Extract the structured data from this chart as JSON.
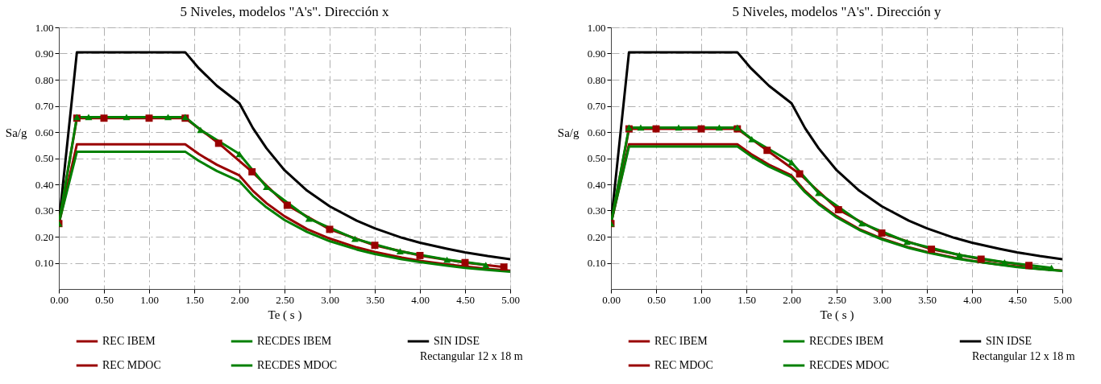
{
  "chart_data": [
    {
      "type": "line",
      "title": "5 Niveles, modelos \"A's\". Dirección x",
      "xlabel": "Te ( s )",
      "ylabel": "Sa/g",
      "xlim": [
        0,
        5
      ],
      "ylim": [
        0,
        1
      ],
      "xticks": [
        {
          "value": 0,
          "label": "0.00"
        },
        {
          "value": 0.5,
          "label": "0.50"
        },
        {
          "value": 1,
          "label": "1.00"
        },
        {
          "value": 1.5,
          "label": "1.50"
        },
        {
          "value": 2,
          "label": "2.00"
        },
        {
          "value": 2.5,
          "label": "2.50"
        },
        {
          "value": 3,
          "label": "3.00"
        },
        {
          "value": 3.5,
          "label": "3.50"
        },
        {
          "value": 4,
          "label": "4.00"
        },
        {
          "value": 4.5,
          "label": "4.50"
        },
        {
          "value": 5,
          "label": "5.00"
        }
      ],
      "yticks": [
        {
          "value": 0.1,
          "label": "0.10"
        },
        {
          "value": 0.2,
          "label": "0.20"
        },
        {
          "value": 0.3,
          "label": "0.30"
        },
        {
          "value": 0.4,
          "label": "0.40"
        },
        {
          "value": 0.5,
          "label": "0.50"
        },
        {
          "value": 0.6,
          "label": "0.60"
        },
        {
          "value": 0.7,
          "label": "0.70"
        },
        {
          "value": 0.8,
          "label": "0.80"
        },
        {
          "value": 0.9,
          "label": "0.90"
        },
        {
          "value": 1,
          "label": "1.00"
        }
      ],
      "grid": true,
      "legend": "bottom",
      "line_style": "solid",
      "annotations": [
        "Rectangular 12 x 18 m"
      ],
      "series": [
        {
          "name": "REC IBEM",
          "color": "#990000",
          "marker": "none",
          "x": [
            0,
            0.2,
            1.4,
            1.55,
            1.75,
            2.0,
            2.15,
            2.3,
            2.5,
            2.75,
            3.0,
            3.3,
            3.5,
            3.8,
            4.0,
            4.3,
            4.5,
            4.75,
            5.0
          ],
          "values": [
            0.25,
            0.553,
            0.553,
            0.516,
            0.475,
            0.434,
            0.375,
            0.328,
            0.278,
            0.229,
            0.193,
            0.159,
            0.142,
            0.12,
            0.108,
            0.094,
            0.086,
            0.077,
            0.07
          ]
        },
        {
          "name": "RECDES IBEM",
          "color": "#008000",
          "marker": "none",
          "x": [
            0,
            0.2,
            1.4,
            1.55,
            1.75,
            2.0,
            2.15,
            2.3,
            2.5,
            2.75,
            3.0,
            3.3,
            3.5,
            3.8,
            4.0,
            4.3,
            4.5,
            4.75,
            5.0
          ],
          "values": [
            0.25,
            0.525,
            0.525,
            0.49,
            0.451,
            0.412,
            0.356,
            0.312,
            0.264,
            0.218,
            0.183,
            0.151,
            0.134,
            0.114,
            0.103,
            0.089,
            0.081,
            0.073,
            0.066
          ]
        },
        {
          "name": "SIN IDSE",
          "color": "#000000",
          "marker": "none",
          "x": [
            0,
            0.2,
            1.4,
            1.55,
            1.75,
            2.0,
            2.15,
            2.3,
            2.5,
            2.75,
            3.0,
            3.3,
            3.5,
            3.8,
            4.0,
            4.3,
            4.5,
            4.75,
            5.0
          ],
          "values": [
            0.25,
            0.905,
            0.905,
            0.844,
            0.777,
            0.71,
            0.615,
            0.538,
            0.454,
            0.376,
            0.316,
            0.261,
            0.232,
            0.196,
            0.177,
            0.154,
            0.14,
            0.126,
            0.114
          ]
        },
        {
          "name": "REC MDOC",
          "color": "#990000",
          "marker": "square",
          "x": [
            0,
            0.2,
            0.5,
            1.0,
            1.4,
            1.77,
            2.14,
            2.53,
            3.0,
            3.5,
            4.0,
            4.5,
            4.93
          ],
          "values": [
            0.25,
            0.653,
            0.653,
            0.653,
            0.653,
            0.557,
            0.448,
            0.32,
            0.228,
            0.167,
            0.128,
            0.101,
            0.084
          ]
        },
        {
          "name": "RECDES MDOC",
          "color": "#008000",
          "marker": "triangle",
          "x": [
            0,
            0.2,
            0.33,
            0.75,
            1.21,
            1.4,
            1.57,
            2.0,
            2.3,
            2.77,
            3.28,
            3.78,
            4.3,
            4.73
          ],
          "values": [
            0.25,
            0.657,
            0.657,
            0.657,
            0.657,
            0.657,
            0.608,
            0.516,
            0.39,
            0.269,
            0.192,
            0.144,
            0.112,
            0.092
          ]
        }
      ]
    },
    {
      "type": "line",
      "title": "5 Niveles, modelos \"A's\". Dirección y",
      "xlabel": "Te ( s )",
      "ylabel": "Sa/g",
      "xlim": [
        0,
        5
      ],
      "ylim": [
        0,
        1
      ],
      "xticks": [
        {
          "value": 0,
          "label": "0.00"
        },
        {
          "value": 0.5,
          "label": "0.50"
        },
        {
          "value": 1,
          "label": "1.00"
        },
        {
          "value": 1.5,
          "label": "1.50"
        },
        {
          "value": 2,
          "label": "2.00"
        },
        {
          "value": 2.5,
          "label": "2.50"
        },
        {
          "value": 3,
          "label": "3.00"
        },
        {
          "value": 3.5,
          "label": "3.50"
        },
        {
          "value": 4,
          "label": "4.00"
        },
        {
          "value": 4.5,
          "label": "4.50"
        },
        {
          "value": 5,
          "label": "5.00"
        }
      ],
      "yticks": [
        {
          "value": 0.1,
          "label": "0.10"
        },
        {
          "value": 0.2,
          "label": "0.20"
        },
        {
          "value": 0.3,
          "label": "0.30"
        },
        {
          "value": 0.4,
          "label": "0.40"
        },
        {
          "value": 0.5,
          "label": "0.50"
        },
        {
          "value": 0.6,
          "label": "0.60"
        },
        {
          "value": 0.7,
          "label": "0.70"
        },
        {
          "value": 0.8,
          "label": "0.80"
        },
        {
          "value": 0.9,
          "label": "0.90"
        },
        {
          "value": 1,
          "label": "1.00"
        }
      ],
      "grid": true,
      "legend": "bottom",
      "line_style": "solid",
      "annotations": [
        "Rectangular 12 x 18 m"
      ],
      "series": [
        {
          "name": "REC IBEM",
          "color": "#990000",
          "marker": "none",
          "x": [
            0,
            0.2,
            1.4,
            1.55,
            1.75,
            2.0,
            2.15,
            2.3,
            2.5,
            2.75,
            3.0,
            3.3,
            3.5,
            3.8,
            4.0,
            4.3,
            4.5,
            4.75,
            5.0
          ],
          "values": [
            0.25,
            0.553,
            0.553,
            0.516,
            0.475,
            0.434,
            0.375,
            0.328,
            0.278,
            0.229,
            0.193,
            0.159,
            0.142,
            0.12,
            0.108,
            0.094,
            0.086,
            0.077,
            0.07
          ]
        },
        {
          "name": "RECDES IBEM",
          "color": "#008000",
          "marker": "none",
          "x": [
            0,
            0.2,
            1.4,
            1.55,
            1.75,
            2.0,
            2.15,
            2.3,
            2.5,
            2.75,
            3.0,
            3.3,
            3.5,
            3.8,
            4.0,
            4.3,
            4.5,
            4.75,
            5.0
          ],
          "values": [
            0.25,
            0.545,
            0.545,
            0.508,
            0.468,
            0.428,
            0.37,
            0.324,
            0.274,
            0.226,
            0.19,
            0.157,
            0.14,
            0.118,
            0.107,
            0.093,
            0.084,
            0.076,
            0.069
          ]
        },
        {
          "name": "SIN IDSE",
          "color": "#000000",
          "marker": "none",
          "x": [
            0,
            0.2,
            1.4,
            1.55,
            1.75,
            2.0,
            2.15,
            2.3,
            2.5,
            2.75,
            3.0,
            3.3,
            3.5,
            3.8,
            4.0,
            4.3,
            4.5,
            4.75,
            5.0
          ],
          "values": [
            0.25,
            0.905,
            0.905,
            0.844,
            0.777,
            0.71,
            0.615,
            0.538,
            0.454,
            0.376,
            0.316,
            0.261,
            0.232,
            0.196,
            0.177,
            0.154,
            0.14,
            0.126,
            0.114
          ]
        },
        {
          "name": "REC MDOC",
          "color": "#990000",
          "marker": "square",
          "x": [
            0,
            0.2,
            0.5,
            1.0,
            1.4,
            1.73,
            2.09,
            2.52,
            3.0,
            3.55,
            4.1,
            4.63
          ],
          "values": [
            0.25,
            0.612,
            0.612,
            0.612,
            0.612,
            0.53,
            0.44,
            0.303,
            0.214,
            0.152,
            0.114,
            0.09
          ]
        },
        {
          "name": "RECDES MDOC",
          "color": "#008000",
          "marker": "triangle",
          "x": [
            0,
            0.2,
            0.33,
            0.75,
            1.2,
            1.4,
            1.56,
            2.0,
            2.3,
            2.78,
            3.28,
            3.86,
            4.36,
            4.88
          ],
          "values": [
            0.25,
            0.617,
            0.617,
            0.617,
            0.617,
            0.617,
            0.573,
            0.484,
            0.367,
            0.251,
            0.18,
            0.13,
            0.102,
            0.081
          ]
        }
      ]
    }
  ]
}
